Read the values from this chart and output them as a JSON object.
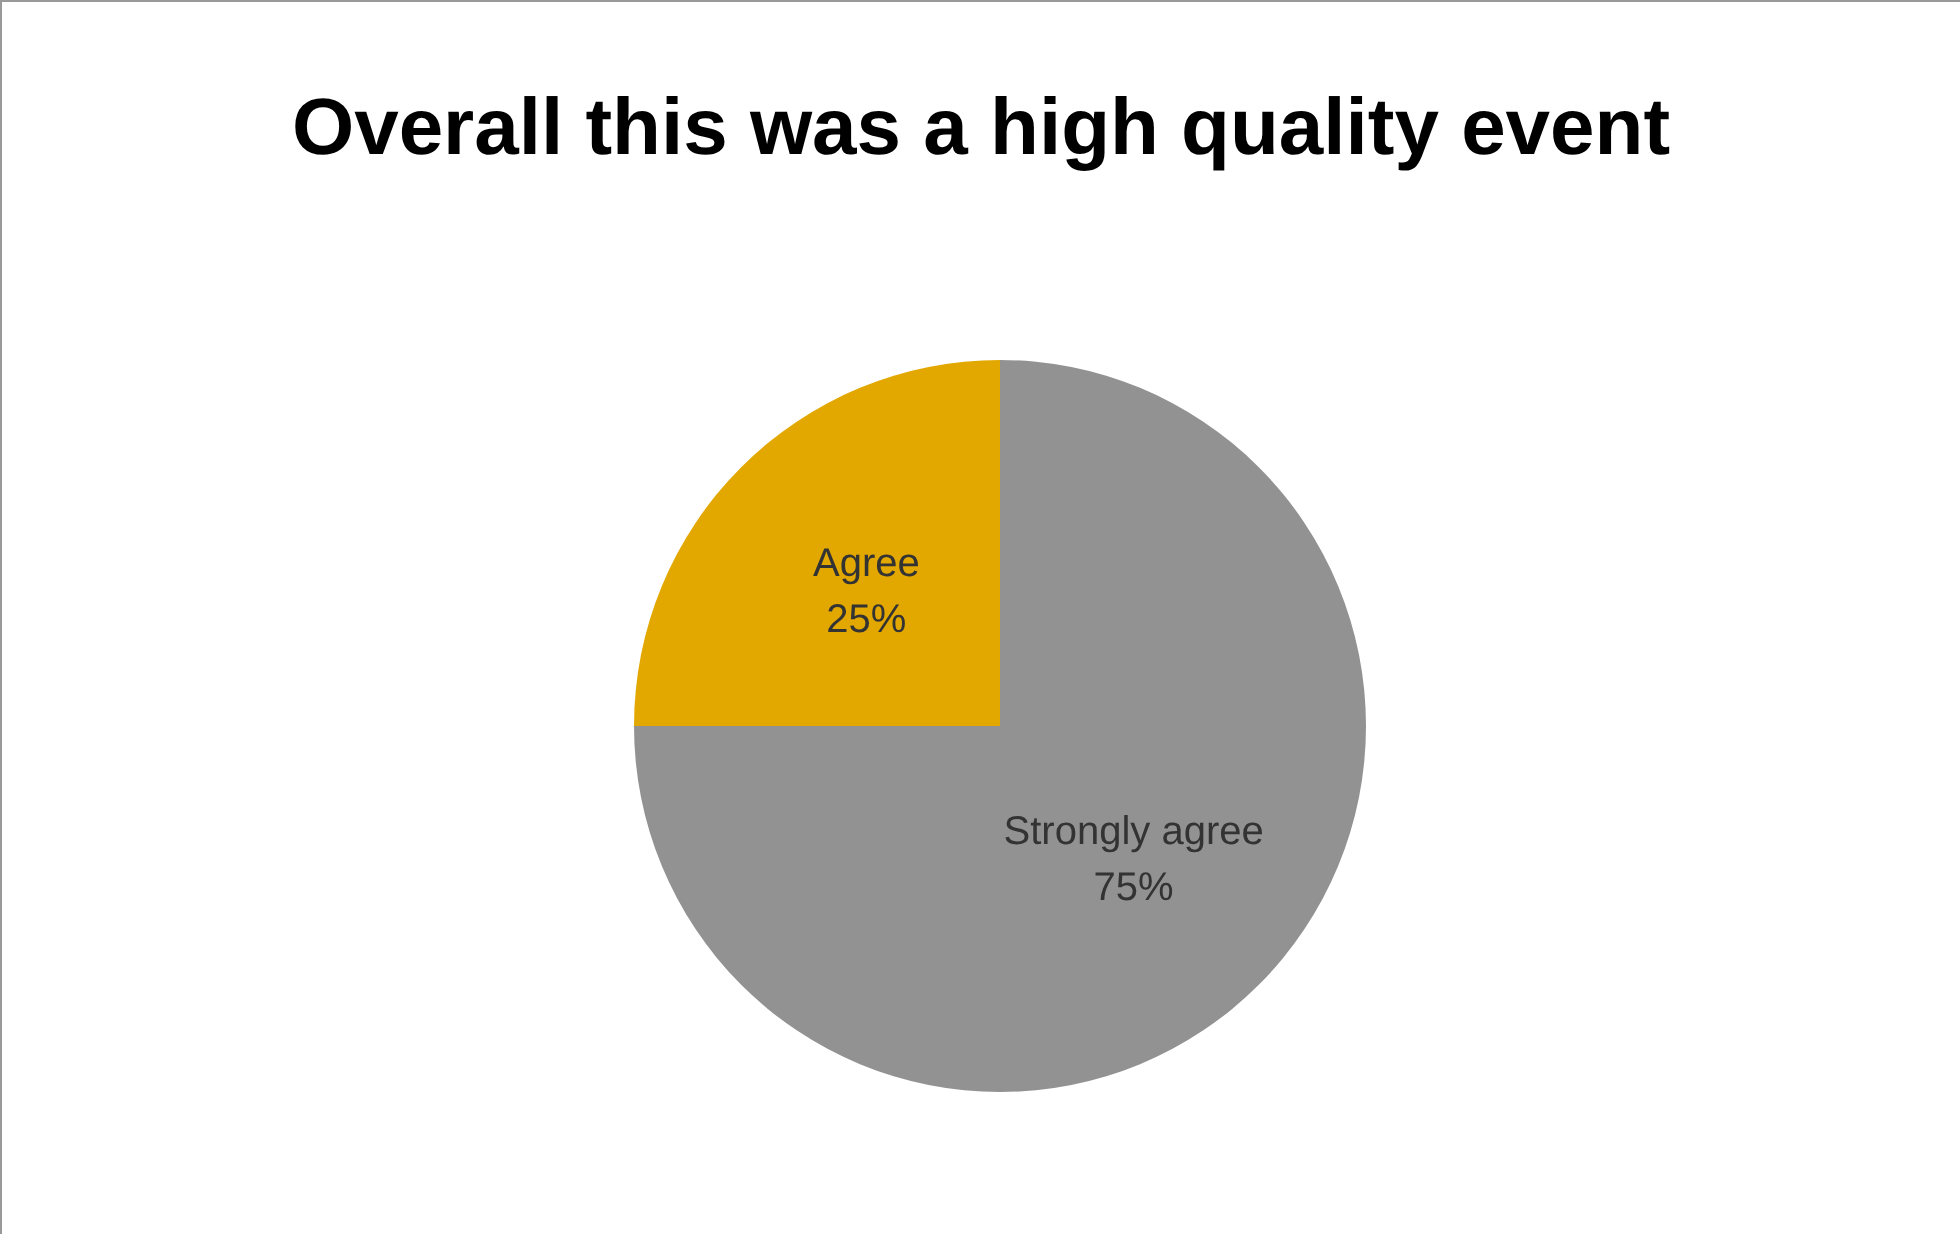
{
  "chart_data": {
    "type": "pie",
    "title": "Overall this was a high quality event",
    "categories": [
      "Strongly agree",
      "Agree"
    ],
    "values": [
      75,
      25
    ],
    "colors": [
      "#929292",
      "#e2a800"
    ],
    "value_labels": [
      "75%",
      "25%"
    ],
    "legend": false
  }
}
